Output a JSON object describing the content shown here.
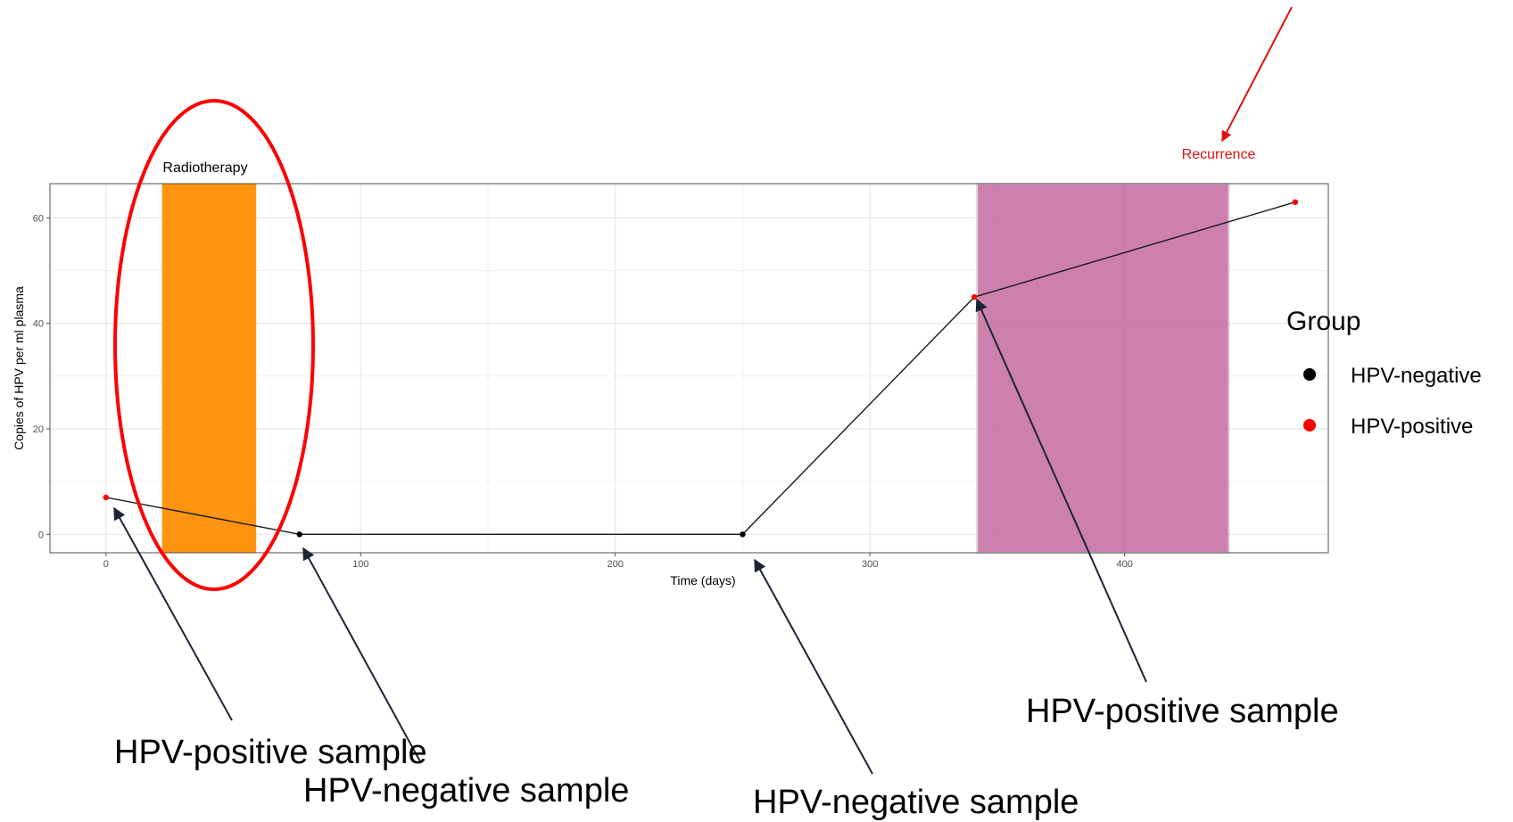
{
  "chart_data": {
    "type": "line",
    "xlabel": "Time (days)",
    "ylabel": "Copies of HPV per ml plasma",
    "xlim": [
      -22,
      480
    ],
    "ylim": [
      -3.5,
      66.5
    ],
    "x_ticks": [
      0,
      100,
      200,
      300,
      400
    ],
    "y_ticks": [
      0,
      20,
      40,
      60
    ],
    "grid": true,
    "points": [
      {
        "x": 0,
        "y": 7,
        "group": "HPV-positive"
      },
      {
        "x": 76,
        "y": 0,
        "group": "HPV-negative"
      },
      {
        "x": 250,
        "y": 0,
        "group": "HPV-negative"
      },
      {
        "x": 341,
        "y": 45,
        "group": "HPV-positive"
      },
      {
        "x": 467,
        "y": 63,
        "group": "HPV-positive"
      }
    ],
    "shaded_regions": [
      {
        "label": "Radiotherapy",
        "x_start": 22,
        "x_end": 59,
        "color": "#ff9410"
      },
      {
        "label": "",
        "x_start": 342,
        "x_end": 441,
        "color": "#c0609a"
      }
    ],
    "legend": {
      "title": "Group",
      "position": "right",
      "entries": [
        {
          "label": "HPV-negative",
          "color": "#000000"
        },
        {
          "label": "HPV-positive",
          "color": "#ff0000"
        }
      ]
    }
  },
  "annotations": {
    "radiotherapy": "Radiotherapy",
    "recurrence": "Recurrence",
    "recurrence_color": "#e01010",
    "callout_1": "HPV-positive sample",
    "callout_2": "HPV-negative sample",
    "callout_3": "HPV-negative sample",
    "callout_4": "HPV-positive sample"
  }
}
